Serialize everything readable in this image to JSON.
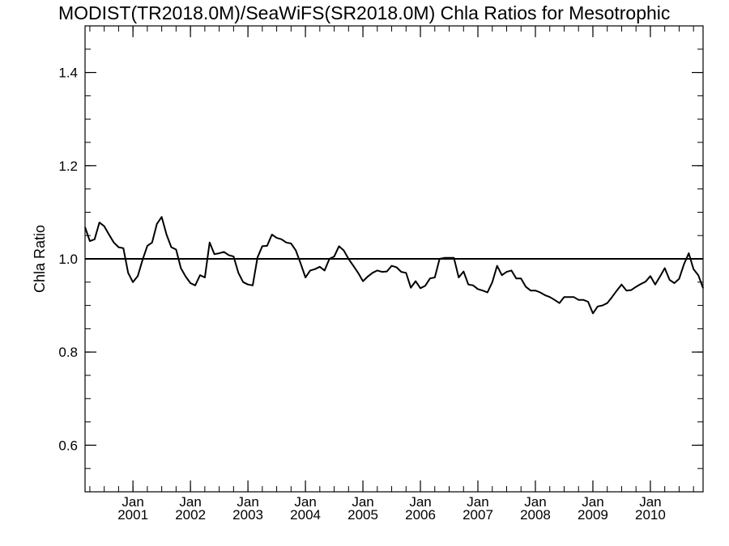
{
  "chart_data": {
    "type": "line",
    "title": "MODIST(TR2018.0M)/SeaWiFS(SR2018.0M)  Chla Ratios for Mesotrophic",
    "ylabel": "Chla Ratio",
    "xlabel": "",
    "xlim": [
      "2000-03",
      "2010-12"
    ],
    "ylim": [
      0.5,
      1.5
    ],
    "yticks": [
      {
        "value": 0.6,
        "label": "0.6"
      },
      {
        "value": 0.8,
        "label": "0.8"
      },
      {
        "value": 1.0,
        "label": "1.0"
      },
      {
        "value": 1.2,
        "label": "1.2"
      },
      {
        "value": 1.4,
        "label": "1.4"
      }
    ],
    "xticks": [
      {
        "value": "2001-01",
        "month": "Jan",
        "year": "2001"
      },
      {
        "value": "2002-01",
        "month": "Jan",
        "year": "2002"
      },
      {
        "value": "2003-01",
        "month": "Jan",
        "year": "2003"
      },
      {
        "value": "2004-01",
        "month": "Jan",
        "year": "2004"
      },
      {
        "value": "2005-01",
        "month": "Jan",
        "year": "2005"
      },
      {
        "value": "2006-01",
        "month": "Jan",
        "year": "2006"
      },
      {
        "value": "2007-01",
        "month": "Jan",
        "year": "2007"
      },
      {
        "value": "2008-01",
        "month": "Jan",
        "year": "2008"
      },
      {
        "value": "2009-01",
        "month": "Jan",
        "year": "2009"
      },
      {
        "value": "2010-01",
        "month": "Jan",
        "year": "2010"
      }
    ],
    "reference_line": 1.0,
    "grid": false,
    "series": [
      {
        "color": "#000000",
        "x": [
          "2000-03",
          "2000-04",
          "2000-05",
          "2000-06",
          "2000-07",
          "2000-08",
          "2000-09",
          "2000-10",
          "2000-11",
          "2000-12",
          "2001-01",
          "2001-02",
          "2001-03",
          "2001-04",
          "2001-05",
          "2001-06",
          "2001-07",
          "2001-08",
          "2001-09",
          "2001-10",
          "2001-11",
          "2001-12",
          "2002-01",
          "2002-02",
          "2002-03",
          "2002-04",
          "2002-05",
          "2002-06",
          "2002-07",
          "2002-08",
          "2002-09",
          "2002-10",
          "2002-11",
          "2002-12",
          "2003-01",
          "2003-02",
          "2003-03",
          "2003-04",
          "2003-05",
          "2003-06",
          "2003-07",
          "2003-08",
          "2003-09",
          "2003-10",
          "2003-11",
          "2003-12",
          "2004-01",
          "2004-02",
          "2004-03",
          "2004-04",
          "2004-05",
          "2004-06",
          "2004-07",
          "2004-08",
          "2004-09",
          "2004-10",
          "2004-11",
          "2004-12",
          "2005-01",
          "2005-02",
          "2005-03",
          "2005-04",
          "2005-05",
          "2005-06",
          "2005-07",
          "2005-08",
          "2005-09",
          "2005-10",
          "2005-11",
          "2005-12",
          "2006-01",
          "2006-02",
          "2006-03",
          "2006-04",
          "2006-05",
          "2006-06",
          "2006-07",
          "2006-08",
          "2006-09",
          "2006-10",
          "2006-11",
          "2006-12",
          "2007-01",
          "2007-02",
          "2007-03",
          "2007-04",
          "2007-05",
          "2007-06",
          "2007-07",
          "2007-08",
          "2007-09",
          "2007-10",
          "2007-11",
          "2007-12",
          "2008-01",
          "2008-02",
          "2008-03",
          "2008-04",
          "2008-05",
          "2008-06",
          "2008-07",
          "2008-08",
          "2008-09",
          "2008-10",
          "2008-11",
          "2008-12",
          "2009-01",
          "2009-02",
          "2009-03",
          "2009-04",
          "2009-05",
          "2009-06",
          "2009-07",
          "2009-08",
          "2009-09",
          "2009-10",
          "2009-11",
          "2009-12",
          "2010-01",
          "2010-02",
          "2010-03",
          "2010-04",
          "2010-05",
          "2010-06",
          "2010-07",
          "2010-08",
          "2010-09",
          "2010-10",
          "2010-11",
          "2010-12"
        ],
        "y": [
          1.068,
          1.038,
          1.042,
          1.078,
          1.07,
          1.052,
          1.035,
          1.025,
          1.023,
          0.97,
          0.95,
          0.963,
          0.998,
          1.028,
          1.035,
          1.075,
          1.09,
          1.052,
          1.025,
          1.02,
          0.98,
          0.962,
          0.948,
          0.943,
          0.965,
          0.96,
          1.035,
          1.01,
          1.012,
          1.015,
          1.008,
          1.005,
          0.97,
          0.95,
          0.945,
          0.943,
          1.003,
          1.027,
          1.028,
          1.052,
          1.045,
          1.042,
          1.035,
          1.033,
          1.018,
          0.99,
          0.96,
          0.975,
          0.978,
          0.983,
          0.975,
          1.0,
          1.005,
          1.027,
          1.018,
          1.0,
          0.985,
          0.97,
          0.952,
          0.962,
          0.97,
          0.975,
          0.972,
          0.973,
          0.985,
          0.982,
          0.972,
          0.97,
          0.938,
          0.952,
          0.937,
          0.942,
          0.958,
          0.96,
          1.0,
          1.002,
          1.002,
          1.002,
          0.96,
          0.973,
          0.945,
          0.943,
          0.935,
          0.932,
          0.928,
          0.95,
          0.985,
          0.965,
          0.972,
          0.975,
          0.958,
          0.958,
          0.94,
          0.932,
          0.932,
          0.928,
          0.922,
          0.918,
          0.912,
          0.905,
          0.918,
          0.918,
          0.918,
          0.912,
          0.912,
          0.908,
          0.883,
          0.898,
          0.9,
          0.905,
          0.918,
          0.932,
          0.945,
          0.932,
          0.933,
          0.94,
          0.946,
          0.951,
          0.963,
          0.945,
          0.962,
          0.98,
          0.955,
          0.948,
          0.957,
          0.988,
          1.012,
          0.978,
          0.965,
          0.937
        ]
      }
    ]
  }
}
